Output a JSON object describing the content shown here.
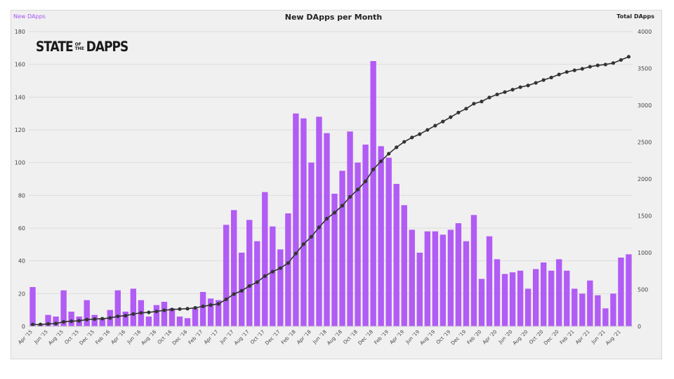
{
  "chart_data": {
    "type": "bar+line",
    "title": "New DApps per Month",
    "y_left_label": "New DApps",
    "y_right_label": "Total DApps",
    "y_left_ticks": [
      0,
      20,
      40,
      60,
      80,
      100,
      120,
      140,
      160,
      180
    ],
    "y_right_ticks": [
      0,
      500,
      1000,
      1500,
      2000,
      2500,
      3000,
      3500,
      4000
    ],
    "y_left_range": [
      0,
      180
    ],
    "y_right_range": [
      0,
      4000
    ],
    "x_tick_labels": [
      "Apr '15",
      "Jun '15",
      "Aug '15",
      "Oct '15",
      "Dec '15",
      "Feb '16",
      "Apr '16",
      "Jun '16",
      "Aug '16",
      "Oct '16",
      "Dec '16",
      "Feb '17",
      "Apr '17",
      "Jun '17",
      "Aug '17",
      "Oct '17",
      "Dec '17",
      "Feb '18",
      "Apr '18",
      "Jun '18",
      "Aug '18",
      "Oct '18",
      "Dec '18",
      "Feb '19",
      "Apr '19",
      "Jun '19",
      "Aug '19",
      "Oct '19",
      "Dec '19",
      "Feb '20",
      "Apr '20",
      "Jun '20",
      "Aug '20",
      "Oct '20",
      "Dec '20",
      "Feb '21",
      "Apr '21",
      "Jun '21",
      "Aug '21"
    ],
    "months_start": "2015-04",
    "series": [
      {
        "name": "New DApps",
        "type": "bar",
        "axis": "left",
        "color": "#b15cf5",
        "values": [
          24,
          1,
          7,
          6,
          22,
          9,
          6,
          16,
          7,
          5,
          10,
          22,
          9,
          23,
          16,
          6,
          13,
          15,
          11,
          6,
          5,
          11,
          21,
          17,
          16,
          62,
          71,
          45,
          65,
          52,
          82,
          61,
          47,
          69,
          130,
          127,
          100,
          128,
          118,
          81,
          95,
          119,
          100,
          111,
          162,
          110,
          103,
          87,
          74,
          59,
          45,
          58,
          58,
          56,
          59,
          63,
          52,
          68,
          29,
          55,
          41,
          32,
          33,
          34,
          23,
          35,
          39,
          34,
          41,
          34,
          23,
          20,
          28,
          19,
          11,
          20,
          42,
          44
        ]
      },
      {
        "name": "Total DApps",
        "type": "line",
        "axis": "right",
        "color": "#333333",
        "values": [
          25,
          26,
          33,
          39,
          61,
          70,
          76,
          92,
          99,
          104,
          114,
          136,
          145,
          168,
          184,
          190,
          203,
          218,
          229,
          235,
          240,
          251,
          272,
          289,
          305,
          367,
          438,
          483,
          548,
          600,
          682,
          743,
          790,
          859,
          989,
          1116,
          1216,
          1344,
          1462,
          1543,
          1638,
          1757,
          1857,
          1968,
          2130,
          2240,
          2343,
          2430,
          2504,
          2563,
          2608,
          2666,
          2724,
          2780,
          2839,
          2902,
          2954,
          3022,
          3051,
          3106,
          3147,
          3179,
          3212,
          3246,
          3269,
          3304,
          3343,
          3377,
          3418,
          3452,
          3475,
          3495,
          3523,
          3542,
          3553,
          3573,
          3615,
          3659
        ]
      }
    ],
    "grid": "horizontal"
  },
  "logo": {
    "line1": "STATE",
    "of": "OF",
    "the": "THE",
    "line2": "DAPPS"
  },
  "colors": {
    "bar": "#b15cf5",
    "line": "#333333",
    "left_label": "#a855f7",
    "grid": "#dddddd",
    "frame_bg": "#f0f0f0"
  }
}
